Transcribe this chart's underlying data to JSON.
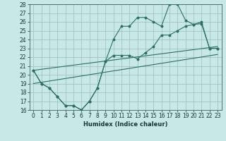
{
  "xlabel": "Humidex (Indice chaleur)",
  "x": [
    0,
    1,
    2,
    3,
    4,
    5,
    6,
    7,
    8,
    9,
    10,
    11,
    12,
    13,
    14,
    15,
    16,
    17,
    18,
    19,
    20,
    21,
    22,
    23
  ],
  "line1": [
    20.5,
    19.0,
    18.5,
    17.5,
    16.5,
    16.5,
    16.0,
    17.0,
    18.5,
    21.5,
    24.0,
    25.5,
    25.5,
    26.5,
    26.5,
    26.0,
    25.5,
    28.0,
    28.0,
    26.2,
    25.7,
    25.8,
    23.0,
    23.0
  ],
  "line2": [
    20.5,
    19.0,
    18.5,
    17.5,
    16.5,
    16.5,
    16.0,
    17.0,
    18.5,
    21.5,
    22.2,
    22.2,
    22.2,
    21.8,
    22.5,
    23.2,
    24.5,
    24.5,
    25.0,
    25.5,
    25.7,
    26.0,
    23.0,
    23.0
  ],
  "trend1_x": [
    0,
    23
  ],
  "trend1_y": [
    20.5,
    23.2
  ],
  "trend2_x": [
    0,
    23
  ],
  "trend2_y": [
    19.0,
    22.3
  ],
  "color": "#2a7060",
  "bg_color": "#c8e8e8",
  "grid_color": "#9bbcbc",
  "ylim": [
    16,
    28
  ],
  "xlim_min": -0.5,
  "xlim_max": 23.5,
  "yticks": [
    16,
    17,
    18,
    19,
    20,
    21,
    22,
    23,
    24,
    25,
    26,
    27,
    28
  ],
  "xticks": [
    0,
    1,
    2,
    3,
    4,
    5,
    6,
    7,
    8,
    9,
    10,
    11,
    12,
    13,
    14,
    15,
    16,
    17,
    18,
    19,
    20,
    21,
    22,
    23
  ],
  "tick_fontsize": 5.5,
  "xlabel_fontsize": 6.0
}
